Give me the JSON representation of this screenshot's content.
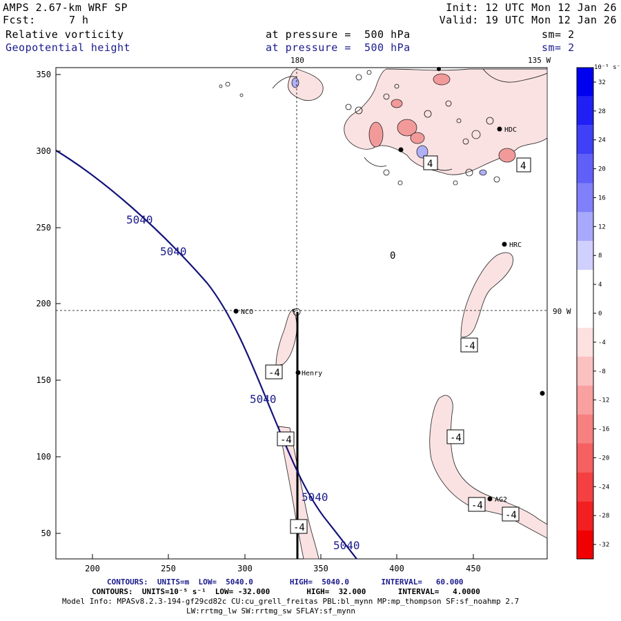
{
  "header": {
    "model": "AMPS 2.67-km WRF SP",
    "forecast_label": "Fcst:",
    "forecast_hours": "7 h",
    "init": "Init: 12 UTC Mon 12 Jan 26",
    "valid": "Valid: 19 UTC Mon 12 Jan 26",
    "field1_name": "Relative vorticity",
    "field1_level": "at pressure =  500 hPa",
    "field1_sm": "sm= 2",
    "field2_name": "Geopotential height",
    "field2_level": "at pressure =  500 hPa",
    "field2_sm": "sm= 2"
  },
  "map": {
    "meridian_180": "180",
    "meridian_135w": "135 W",
    "meridian_90w": "90 W",
    "x_ticks": [
      "200",
      "250",
      "300",
      "350",
      "400",
      "450"
    ],
    "y_ticks": [
      "350",
      "300",
      "250",
      "200",
      "150",
      "100",
      "50"
    ],
    "stations": [
      {
        "name": "NCO"
      },
      {
        "name": "Henry"
      },
      {
        "name": "HRC"
      },
      {
        "name": "AG2"
      },
      {
        "name": "HDC"
      }
    ],
    "height_labels": [
      "5040",
      "5040",
      "5040",
      "5040",
      "5040"
    ],
    "vort_labels": [
      "-4",
      "-4",
      "-4",
      "-4",
      "-4",
      "-4",
      "-4",
      "4",
      "4",
      "0"
    ]
  },
  "colorbar": {
    "units": "10⁻⁵ s⁻¹",
    "ticks": [
      "32",
      "28",
      "24",
      "20",
      "16",
      "12",
      "8",
      "4",
      "0",
      "-4",
      "-8",
      "-12",
      "-16",
      "-20",
      "-24",
      "-28",
      "-32"
    ],
    "colors": [
      "#0000f0",
      "#2020f4",
      "#4040f6",
      "#6060f8",
      "#8080fa",
      "#a8a8fc",
      "#d0d0fe",
      "#ffffff",
      "#ffffff",
      "#fde0e0",
      "#fbc0c0",
      "#f9a0a0",
      "#f78080",
      "#f56060",
      "#f44040",
      "#f22020",
      "#f00000"
    ]
  },
  "footer": {
    "contours_height": "CONTOURS:  UNITS=m  LOW=  5040.0        HIGH=  5040.0       INTERVAL=   60.000",
    "contours_vort": "CONTOURS:  UNITS=10⁻⁵ s⁻¹  LOW= -32.000        HIGH=  32.000       INTERVAL=   4.0000",
    "model_info": "Model Info: MPASv8.2.3-194-gf29cd82c CU:cu_grell_freitas PBL:bl_mynn MP:mp_thompson SF:sf_noahmp 2.7",
    "model_info2": "LW:rrtmg_lw SW:rrtmg_sw SFLAY:sf_mynn"
  }
}
